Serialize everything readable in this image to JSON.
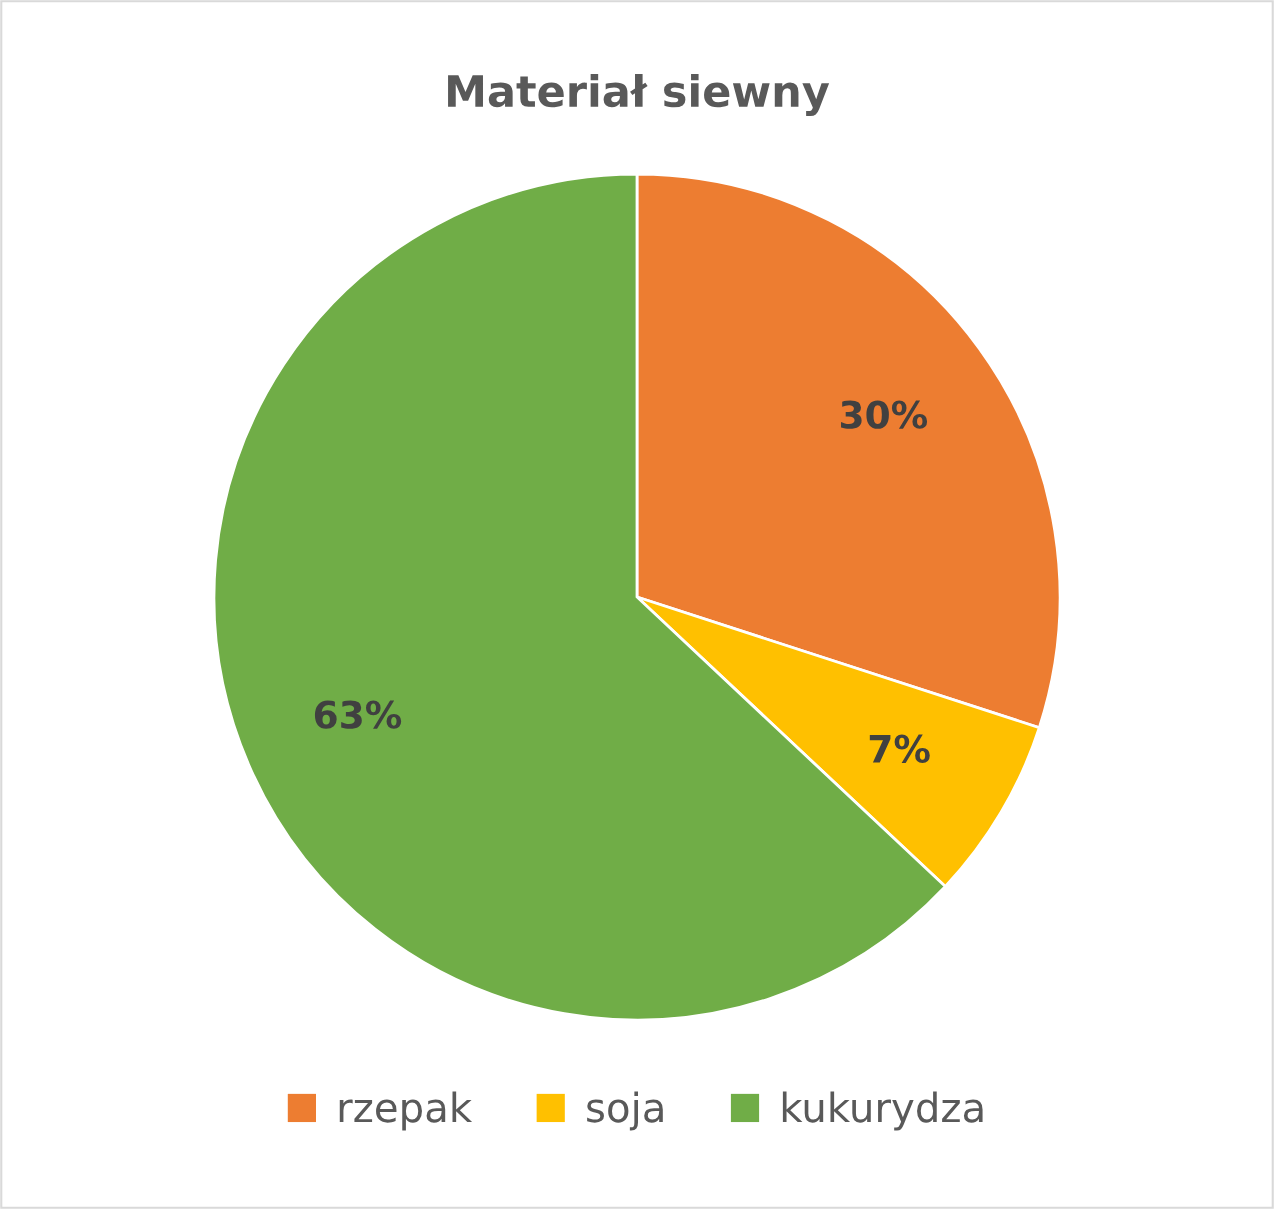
{
  "chart_data": {
    "type": "pie",
    "title": "Materiał siewny",
    "categories": [
      "rzepak",
      "soja",
      "kukurydza"
    ],
    "values": [
      30,
      7,
      63
    ],
    "colors": [
      "#ed7d31",
      "#ffc000",
      "#70ad47"
    ],
    "value_labels": [
      "30%",
      "7%",
      "63%"
    ],
    "legend": "bottom"
  }
}
